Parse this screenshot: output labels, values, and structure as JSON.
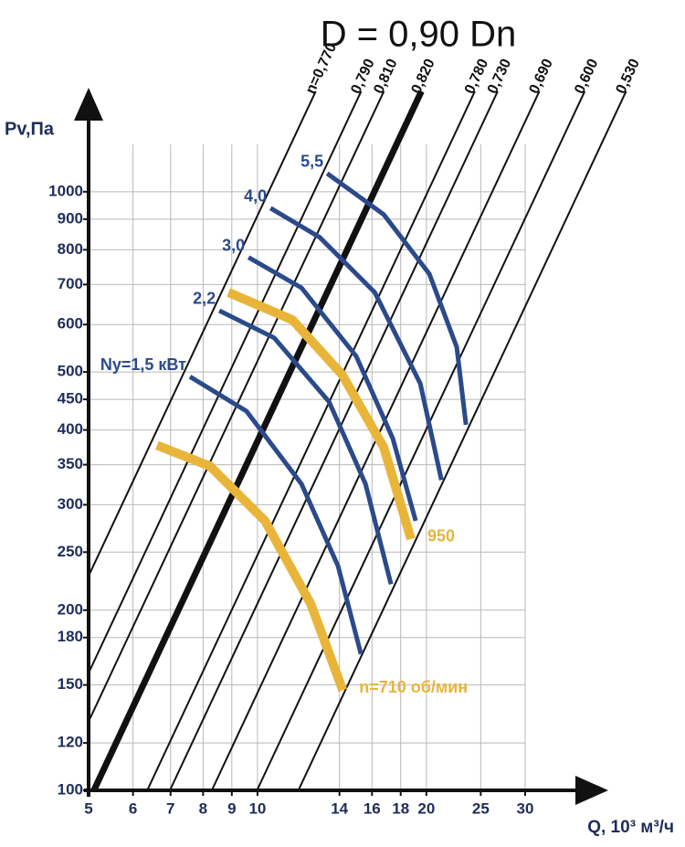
{
  "chart_data": {
    "type": "line",
    "title": "D = 0,90 Dn",
    "ylabel": "Pv,Па",
    "xlabel": "Q, 10³ м³/ч",
    "xscale": "log",
    "yscale": "log",
    "xlim": [
      5,
      30
    ],
    "ylim": [
      100,
      1200
    ],
    "xticks": [
      5,
      6,
      7,
      8,
      9,
      10,
      14,
      16,
      18,
      20,
      25,
      30
    ],
    "yticks": [
      100,
      120,
      150,
      180,
      200,
      250,
      300,
      350,
      400,
      450,
      500,
      600,
      700,
      800,
      900,
      1000
    ],
    "grid": true,
    "series": [
      {
        "name": "n=0,770",
        "color": "#111111",
        "line_width": 2,
        "x": [
          3.31,
          12.7
        ],
        "values": [
          100,
          1472
        ]
      },
      {
        "name": "0,790",
        "color": "#111111",
        "line_width": 2,
        "x": [
          3.99,
          15.3
        ],
        "values": [
          100,
          1472
        ]
      },
      {
        "name": "0,810",
        "color": "#111111",
        "line_width": 2,
        "x": [
          4.38,
          16.8
        ],
        "values": [
          100,
          1472
        ]
      },
      {
        "name": "0,820",
        "color": "#111111",
        "line_width": 7,
        "x": [
          5.11,
          19.6
        ],
        "values": [
          100,
          1472
        ]
      },
      {
        "name": "0,780",
        "color": "#111111",
        "line_width": 2,
        "x": [
          6.36,
          24.4
        ],
        "values": [
          100,
          1472
        ]
      },
      {
        "name": "0,730",
        "color": "#111111",
        "line_width": 2,
        "x": [
          6.98,
          26.8
        ],
        "values": [
          100,
          1472
        ]
      },
      {
        "name": "0,690",
        "color": "#111111",
        "line_width": 2,
        "x": [
          8.29,
          31.8
        ],
        "values": [
          100,
          1472
        ]
      },
      {
        "name": "0,600",
        "color": "#111111",
        "line_width": 2,
        "x": [
          9.98,
          38.3
        ],
        "values": [
          100,
          1472
        ]
      },
      {
        "name": "0,530",
        "color": "#111111",
        "line_width": 2,
        "x": [
          11.83,
          45.4
        ],
        "values": [
          100,
          1472
        ]
      },
      {
        "name": "n=710 об/мин",
        "color": "#e8b53a",
        "line_width": 10,
        "x": [
          6.62,
          8.23,
          10.31,
          12.44,
          14.19
        ],
        "values": [
          377,
          348,
          282,
          205,
          147
        ]
      },
      {
        "name": "950",
        "color": "#e8b53a",
        "line_width": 10,
        "x": [
          8.88,
          11.54,
          14.15,
          16.79,
          18.78
        ],
        "values": [
          679,
          611,
          495,
          374,
          263
        ]
      },
      {
        "name": "Ny=1,5 кВт",
        "color": "#2b4a8b",
        "line_width": 5,
        "x": [
          7.58,
          9.56,
          11.98,
          13.92,
          15.29
        ],
        "values": [
          491,
          430,
          325,
          237,
          169
        ]
      },
      {
        "name": "2,2",
        "color": "#2b4a8b",
        "line_width": 5,
        "x": [
          8.55,
          10.71,
          13.41,
          15.58,
          17.3
        ],
        "values": [
          633,
          570,
          446,
          325,
          221
        ]
      },
      {
        "name": "3,0",
        "color": "#2b4a8b",
        "line_width": 5,
        "x": [
          9.64,
          11.98,
          15.0,
          17.43,
          19.14
        ],
        "values": [
          777,
          691,
          531,
          387,
          282
        ]
      },
      {
        "name": "4,0",
        "color": "#2b4a8b",
        "line_width": 5,
        "x": [
          10.55,
          12.91,
          16.18,
          19.51,
          21.27
        ],
        "values": [
          939,
          839,
          679,
          478,
          330
        ]
      },
      {
        "name": "5,5",
        "color": "#2b4a8b",
        "line_width": 5,
        "x": [
          13.31,
          16.79,
          20.25,
          22.66,
          23.53
        ],
        "values": [
          1073,
          916,
          729,
          550,
          408
        ]
      }
    ]
  }
}
